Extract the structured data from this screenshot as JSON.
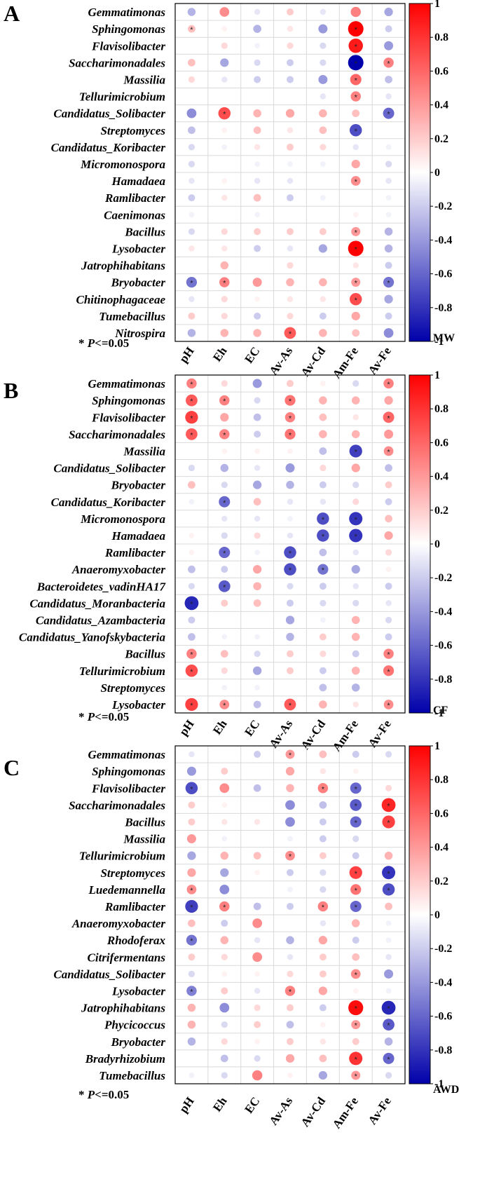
{
  "figure": {
    "columns": [
      "pH",
      "Eh",
      "EC",
      "Av-As",
      "Av-Cd",
      "Am-Fe",
      "Av-Fe"
    ],
    "colorbar_ticks": [
      "1",
      "0.8",
      "0.6",
      "0.4",
      "0.2",
      "0",
      "-0.2",
      "-0.4",
      "-0.6",
      "-0.8",
      "-1"
    ],
    "significance_note": {
      "prefix": "* ",
      "italic": "P",
      "suffix": "<=0.05"
    },
    "significance_marker": "*",
    "colors": {
      "positive": "#ff0000",
      "negative": "#0000aa",
      "neutral": "#ffffff",
      "grid": "#d9d9d9",
      "frame": "#000000"
    }
  },
  "chart_data": [
    {
      "type": "heatmap",
      "panel_label": "A",
      "colorbar_title": "MW",
      "xlabel": "",
      "ylabel": "",
      "value_range": [
        -1,
        1
      ],
      "rows": [
        "Gemmatimonas",
        "Sphingomonas",
        "Flavisolibacter",
        "Saccharimonadales",
        "Massilia",
        "Tellurimicrobium",
        "Candidatus_Solibacter",
        "Streptomyces",
        "Candidatus_Koribacter",
        "Micromonospora",
        "Hamadaea",
        "Ramlibacter",
        "Caenimonas",
        "Bacillus",
        "Lysobacter",
        "Jatrophihabitans",
        "Bryobacter",
        "Chitinophagaceae",
        "Tumebacillus",
        "Nitrospira"
      ],
      "values": [
        [
          -0.3,
          0.45,
          -0.1,
          0.2,
          -0.1,
          0.5,
          -0.35
        ],
        [
          0.25,
          0.05,
          -0.3,
          0.1,
          -0.4,
          1.0,
          -0.2
        ],
        [
          0.0,
          0.15,
          -0.05,
          0.15,
          -0.15,
          0.9,
          -0.4
        ],
        [
          0.25,
          -0.35,
          -0.15,
          -0.2,
          -0.15,
          -1.0,
          0.5
        ],
        [
          0.15,
          -0.1,
          -0.2,
          -0.2,
          -0.4,
          0.6,
          -0.25
        ],
        [
          0.0,
          0.0,
          0.0,
          0.0,
          -0.1,
          0.5,
          -0.1
        ],
        [
          -0.45,
          0.7,
          0.3,
          0.35,
          0.3,
          0.25,
          -0.6
        ],
        [
          -0.25,
          0.05,
          0.25,
          0.1,
          0.25,
          -0.7,
          0.0
        ],
        [
          -0.15,
          -0.05,
          0.1,
          0.2,
          0.15,
          -0.1,
          -0.05
        ],
        [
          -0.15,
          0.0,
          -0.05,
          -0.05,
          -0.05,
          0.35,
          -0.15
        ],
        [
          -0.1,
          0.05,
          -0.1,
          -0.1,
          0.0,
          0.45,
          -0.1
        ],
        [
          -0.2,
          0.1,
          0.25,
          -0.2,
          -0.05,
          0.0,
          -0.05
        ],
        [
          -0.05,
          0.0,
          -0.05,
          0.0,
          0.0,
          0.05,
          -0.05
        ],
        [
          -0.15,
          0.15,
          0.2,
          0.2,
          0.2,
          0.4,
          -0.3
        ],
        [
          0.1,
          0.1,
          -0.2,
          -0.1,
          -0.35,
          1.0,
          -0.3
        ],
        [
          0.0,
          0.3,
          0.0,
          0.15,
          0.0,
          0.1,
          -0.2
        ],
        [
          -0.55,
          0.5,
          0.4,
          0.3,
          0.3,
          0.4,
          -0.55
        ],
        [
          -0.1,
          0.15,
          0.05,
          0.1,
          0.1,
          0.7,
          -0.35
        ],
        [
          0.2,
          0.15,
          -0.2,
          0.15,
          -0.2,
          0.35,
          -0.2
        ],
        [
          -0.3,
          0.3,
          0.3,
          0.65,
          0.3,
          0.25,
          -0.45
        ]
      ],
      "significant": [
        [
          1,
          5
        ],
        [
          1,
          0
        ],
        [
          2,
          5
        ],
        [
          3,
          5
        ],
        [
          3,
          6
        ],
        [
          4,
          5
        ],
        [
          5,
          5
        ],
        [
          6,
          1
        ],
        [
          6,
          6
        ],
        [
          7,
          5
        ],
        [
          10,
          5
        ],
        [
          13,
          5
        ],
        [
          14,
          5
        ],
        [
          16,
          0
        ],
        [
          16,
          1
        ],
        [
          16,
          5
        ],
        [
          16,
          6
        ],
        [
          17,
          5
        ],
        [
          19,
          3
        ]
      ]
    },
    {
      "type": "heatmap",
      "panel_label": "B",
      "colorbar_title": "CF",
      "xlabel": "",
      "ylabel": "",
      "value_range": [
        -1,
        1
      ],
      "rows": [
        "Gemmatimonas",
        "Sphingomonas",
        "Flavisolibacter",
        "Saccharimonadales",
        "Massilia",
        "Candidatus_Solibacter",
        "Bryobacter",
        "Candidatus_Koribacter",
        "Micromonospora",
        "Hamadaea",
        "Ramlibacter",
        "Anaeromyxobacter",
        "Bacteroidetes_vadinHA17",
        "Candidatus_Moranbacteria",
        "Candidatus_Azambacteria",
        "Candidatus_Yanofskybacteria",
        "Bacillus",
        "Tellurimicrobium",
        "Streptomyces",
        "Lysobacter"
      ],
      "values": [
        [
          0.5,
          0.15,
          -0.4,
          0.2,
          0.05,
          -0.15,
          0.5
        ],
        [
          0.65,
          0.5,
          -0.15,
          0.55,
          0.3,
          0.3,
          0.35
        ],
        [
          0.75,
          0.35,
          -0.25,
          0.5,
          0.25,
          0.1,
          0.6
        ],
        [
          0.65,
          0.5,
          -0.2,
          0.55,
          0.3,
          0.3,
          0.4
        ],
        [
          0.0,
          0.05,
          0.05,
          0.05,
          -0.25,
          -0.75,
          0.45
        ],
        [
          -0.15,
          -0.3,
          -0.1,
          -0.4,
          0.15,
          0.35,
          -0.25
        ],
        [
          0.25,
          -0.15,
          -0.35,
          -0.3,
          -0.2,
          -0.15,
          0.2
        ],
        [
          -0.05,
          -0.6,
          0.25,
          -0.1,
          -0.1,
          0.15,
          -0.2
        ],
        [
          0.0,
          -0.1,
          -0.1,
          -0.05,
          -0.7,
          -0.8,
          0.25
        ],
        [
          0.05,
          -0.15,
          0.15,
          -0.1,
          -0.7,
          -0.8,
          0.35
        ],
        [
          0.05,
          -0.6,
          -0.05,
          -0.7,
          -0.25,
          -0.1,
          0.15
        ],
        [
          -0.25,
          -0.2,
          0.35,
          -0.7,
          -0.55,
          -0.35,
          0.05
        ],
        [
          -0.15,
          -0.65,
          0.3,
          -0.15,
          -0.2,
          -0.1,
          -0.2
        ],
        [
          -0.85,
          0.2,
          0.25,
          -0.2,
          -0.15,
          -0.15,
          -0.1
        ],
        [
          -0.2,
          0.0,
          0.0,
          -0.35,
          -0.05,
          0.3,
          -0.15
        ],
        [
          -0.25,
          -0.05,
          -0.05,
          -0.3,
          0.2,
          0.3,
          -0.2
        ],
        [
          0.5,
          0.25,
          -0.15,
          0.2,
          0.15,
          -0.2,
          0.5
        ],
        [
          0.7,
          0.15,
          -0.35,
          0.2,
          -0.2,
          0.3,
          0.55
        ],
        [
          0.0,
          -0.05,
          -0.05,
          0.0,
          -0.25,
          -0.3,
          0.0
        ],
        [
          0.75,
          0.45,
          -0.25,
          0.65,
          0.3,
          0.1,
          0.45
        ]
      ],
      "significant": [
        [
          0,
          0
        ],
        [
          0,
          6
        ],
        [
          1,
          0
        ],
        [
          1,
          1
        ],
        [
          1,
          3
        ],
        [
          2,
          0
        ],
        [
          2,
          3
        ],
        [
          2,
          6
        ],
        [
          3,
          0
        ],
        [
          3,
          1
        ],
        [
          3,
          3
        ],
        [
          4,
          5
        ],
        [
          4,
          6
        ],
        [
          7,
          1
        ],
        [
          8,
          4
        ],
        [
          8,
          5
        ],
        [
          9,
          4
        ],
        [
          9,
          5
        ],
        [
          10,
          1
        ],
        [
          10,
          3
        ],
        [
          11,
          3
        ],
        [
          11,
          4
        ],
        [
          12,
          1
        ],
        [
          13,
          0
        ],
        [
          16,
          0
        ],
        [
          16,
          6
        ],
        [
          17,
          0
        ],
        [
          17,
          6
        ],
        [
          19,
          0
        ],
        [
          19,
          1
        ],
        [
          19,
          3
        ],
        [
          19,
          6
        ]
      ]
    },
    {
      "type": "heatmap",
      "panel_label": "C",
      "colorbar_title": "AWD",
      "xlabel": "",
      "ylabel": "",
      "value_range": [
        -1,
        1
      ],
      "rows": [
        "Gemmatimonas",
        "Sphingomonas",
        "Flavisolibacter",
        "Saccharimonadales",
        "Bacillus",
        "Massilia",
        "Tellurimicrobium",
        "Streptomyces",
        "Luedemannella",
        "Ramlibacter",
        "Anaeromyxobacter",
        "Rhodoferax",
        "Citrifermentans",
        "Candidatus_Solibacter",
        "Lysobacter",
        "Jatrophihabitans",
        "Phycicoccus",
        "Bryobacter",
        "Bradyrhizobium",
        "Tumebacillus"
      ],
      "values": [
        [
          -0.1,
          0.0,
          -0.2,
          0.4,
          0.25,
          -0.2,
          -0.15
        ],
        [
          -0.4,
          0.2,
          0.0,
          0.35,
          0.1,
          0.05,
          0.0
        ],
        [
          -0.7,
          0.45,
          -0.25,
          0.3,
          0.5,
          -0.6,
          0.15
        ],
        [
          0.2,
          0.05,
          0.0,
          -0.45,
          -0.25,
          -0.65,
          0.85
        ],
        [
          0.2,
          0.1,
          0.1,
          -0.45,
          -0.2,
          -0.6,
          0.75
        ],
        [
          0.4,
          -0.05,
          0.0,
          -0.05,
          -0.2,
          -0.15,
          0.0
        ],
        [
          -0.35,
          0.3,
          0.25,
          0.45,
          0.2,
          -0.2,
          0.3
        ],
        [
          0.35,
          -0.35,
          0.05,
          -0.2,
          -0.15,
          0.75,
          -0.8
        ],
        [
          0.45,
          -0.45,
          0.0,
          -0.05,
          -0.15,
          0.55,
          -0.7
        ],
        [
          -0.75,
          0.5,
          -0.25,
          -0.2,
          0.5,
          -0.6,
          0.25
        ],
        [
          0.25,
          -0.2,
          0.45,
          0.0,
          -0.1,
          0.3,
          -0.05
        ],
        [
          -0.55,
          0.3,
          -0.1,
          -0.3,
          0.35,
          -0.2,
          -0.05
        ],
        [
          0.2,
          0.15,
          0.45,
          -0.1,
          0.2,
          0.25,
          -0.1
        ],
        [
          -0.15,
          0.05,
          0.05,
          0.15,
          0.2,
          0.45,
          -0.4
        ],
        [
          -0.5,
          0.2,
          -0.1,
          0.5,
          0.35,
          0.05,
          -0.05
        ],
        [
          0.3,
          -0.45,
          0.15,
          0.2,
          -0.2,
          0.95,
          -0.85
        ],
        [
          0.3,
          -0.15,
          0.2,
          -0.25,
          0.05,
          0.4,
          -0.65
        ],
        [
          -0.3,
          0.15,
          0.05,
          0.2,
          0.1,
          0.2,
          -0.3
        ],
        [
          0.0,
          -0.25,
          -0.15,
          0.35,
          0.25,
          0.8,
          -0.6
        ],
        [
          -0.05,
          -0.15,
          0.5,
          0.05,
          -0.35,
          0.4,
          -0.15
        ]
      ],
      "significant": [
        [
          0,
          3
        ],
        [
          2,
          0
        ],
        [
          2,
          4
        ],
        [
          2,
          5
        ],
        [
          3,
          5
        ],
        [
          3,
          6
        ],
        [
          4,
          5
        ],
        [
          4,
          6
        ],
        [
          6,
          3
        ],
        [
          7,
          5
        ],
        [
          7,
          6
        ],
        [
          8,
          0
        ],
        [
          8,
          5
        ],
        [
          8,
          6
        ],
        [
          9,
          0
        ],
        [
          9,
          1
        ],
        [
          9,
          4
        ],
        [
          9,
          5
        ],
        [
          11,
          0
        ],
        [
          13,
          5
        ],
        [
          14,
          0
        ],
        [
          14,
          3
        ],
        [
          15,
          5
        ],
        [
          15,
          6
        ],
        [
          16,
          5
        ],
        [
          16,
          6
        ],
        [
          18,
          5
        ],
        [
          18,
          6
        ],
        [
          19,
          5
        ]
      ]
    }
  ]
}
